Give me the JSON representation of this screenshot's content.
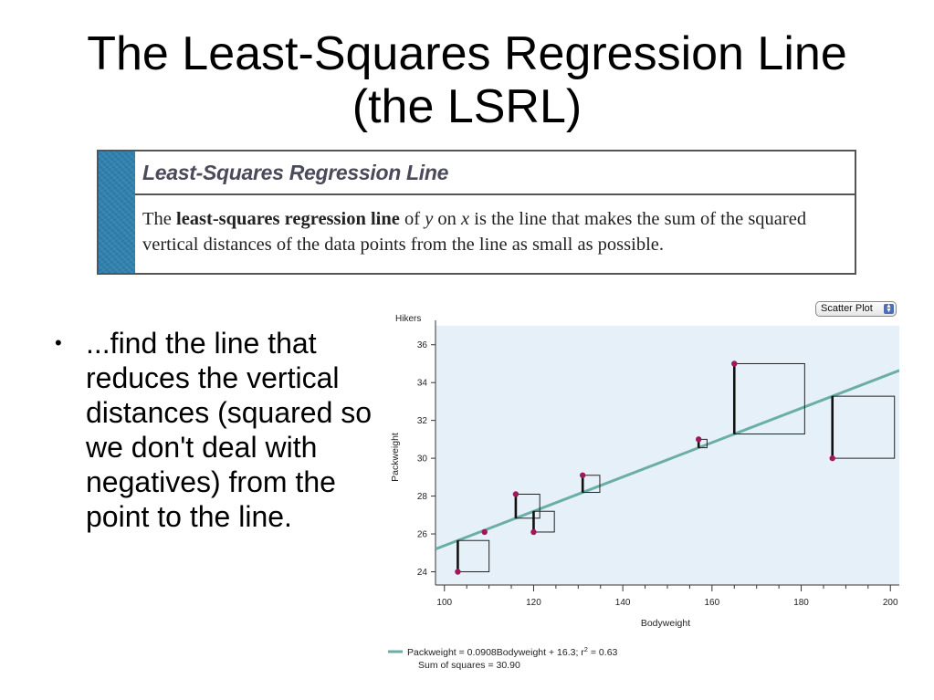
{
  "slide": {
    "title_line1": "The Least-Squares Regression Line",
    "title_line2": "(the LSRL)"
  },
  "definition": {
    "heading": "Least-Squares Regression Line",
    "text_pre": "The ",
    "text_bold": "least-squares regression line",
    "text_of": " of ",
    "text_y": "y",
    "text_on": " on ",
    "text_x": "x",
    "text_post": " is the line that makes the sum of the squared vertical distances of the data points from the line as small as possible.",
    "stripe_color": "#2f80ad"
  },
  "bullet": {
    "symbol": "•",
    "text": "...find the line that reduces the vertical distances (squared so we don't deal with negatives) from the point to the line."
  },
  "plot_control": {
    "label": "Scatter Plot",
    "icon": "up-down-arrows-icon"
  },
  "chart_data": {
    "type": "scatter",
    "title": "Hikers",
    "xlabel": "Bodyweight",
    "ylabel": "Packweight",
    "xlim": [
      98,
      202
    ],
    "ylim": [
      23.3,
      37
    ],
    "x_ticks": [
      100,
      120,
      140,
      160,
      180,
      200
    ],
    "x_minor_step": 5,
    "y_ticks": [
      24,
      26,
      28,
      30,
      32,
      34,
      36
    ],
    "plot_background": "#e6f0f8",
    "point_color": "#a0185a",
    "line_color": "#6aaea6",
    "points": [
      {
        "x": 103,
        "y": 24
      },
      {
        "x": 109,
        "y": 26.1
      },
      {
        "x": 116,
        "y": 28.1
      },
      {
        "x": 120,
        "y": 26.1
      },
      {
        "x": 131,
        "y": 29.1
      },
      {
        "x": 157,
        "y": 31
      },
      {
        "x": 165,
        "y": 35
      },
      {
        "x": 187,
        "y": 30
      }
    ],
    "regression": {
      "slope": 0.0908,
      "intercept": 16.3
    },
    "legend_equation": "Packweight = 0.0908Bodyweight + 16.3; r",
    "legend_r_sup": "2",
    "legend_r_value": " = 0.63",
    "legend_sum_squares": "Sum of squares = 30.90"
  }
}
